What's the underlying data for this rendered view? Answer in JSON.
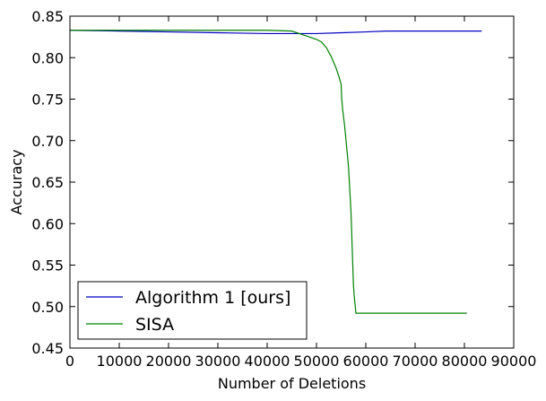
{
  "chart_data": {
    "type": "line",
    "xlabel": "Number of Deletions",
    "ylabel": "Accuracy",
    "xlim": [
      0,
      90000
    ],
    "ylim": [
      0.45,
      0.85
    ],
    "x_ticks": [
      0,
      10000,
      20000,
      30000,
      40000,
      50000,
      60000,
      70000,
      80000,
      90000
    ],
    "y_ticks": [
      "0.45",
      "0.50",
      "0.55",
      "0.60",
      "0.65",
      "0.70",
      "0.75",
      "0.80",
      "0.85"
    ],
    "grid": false,
    "legend_position": "lower-left",
    "series": [
      {
        "name": "Algorithm 1 [ours]",
        "color": "#0000bf",
        "x": [
          0,
          10000,
          20000,
          30000,
          40000,
          45000,
          50000,
          55000,
          60000,
          64000,
          70000,
          75000,
          80000,
          83500
        ],
        "y": [
          0.833,
          0.832,
          0.831,
          0.83,
          0.829,
          0.829,
          0.829,
          0.83,
          0.831,
          0.832,
          0.832,
          0.832,
          0.832,
          0.832
        ]
      },
      {
        "name": "SISA",
        "color": "#008000",
        "x": [
          0,
          10000,
          20000,
          30000,
          40000,
          45000,
          46000,
          48000,
          50000,
          51000,
          52000,
          53000,
          54000,
          54500,
          55000,
          55100,
          55300,
          55700,
          56000,
          56500,
          57000,
          57500,
          57700,
          58000,
          58500,
          60000,
          70000,
          80500
        ],
        "y": [
          0.833,
          0.833,
          0.833,
          0.833,
          0.833,
          0.832,
          0.83,
          0.826,
          0.822,
          0.819,
          0.812,
          0.801,
          0.787,
          0.778,
          0.768,
          0.752,
          0.738,
          0.718,
          0.7,
          0.668,
          0.614,
          0.525,
          0.51,
          0.492,
          0.492,
          0.492,
          0.492,
          0.492
        ]
      }
    ]
  }
}
